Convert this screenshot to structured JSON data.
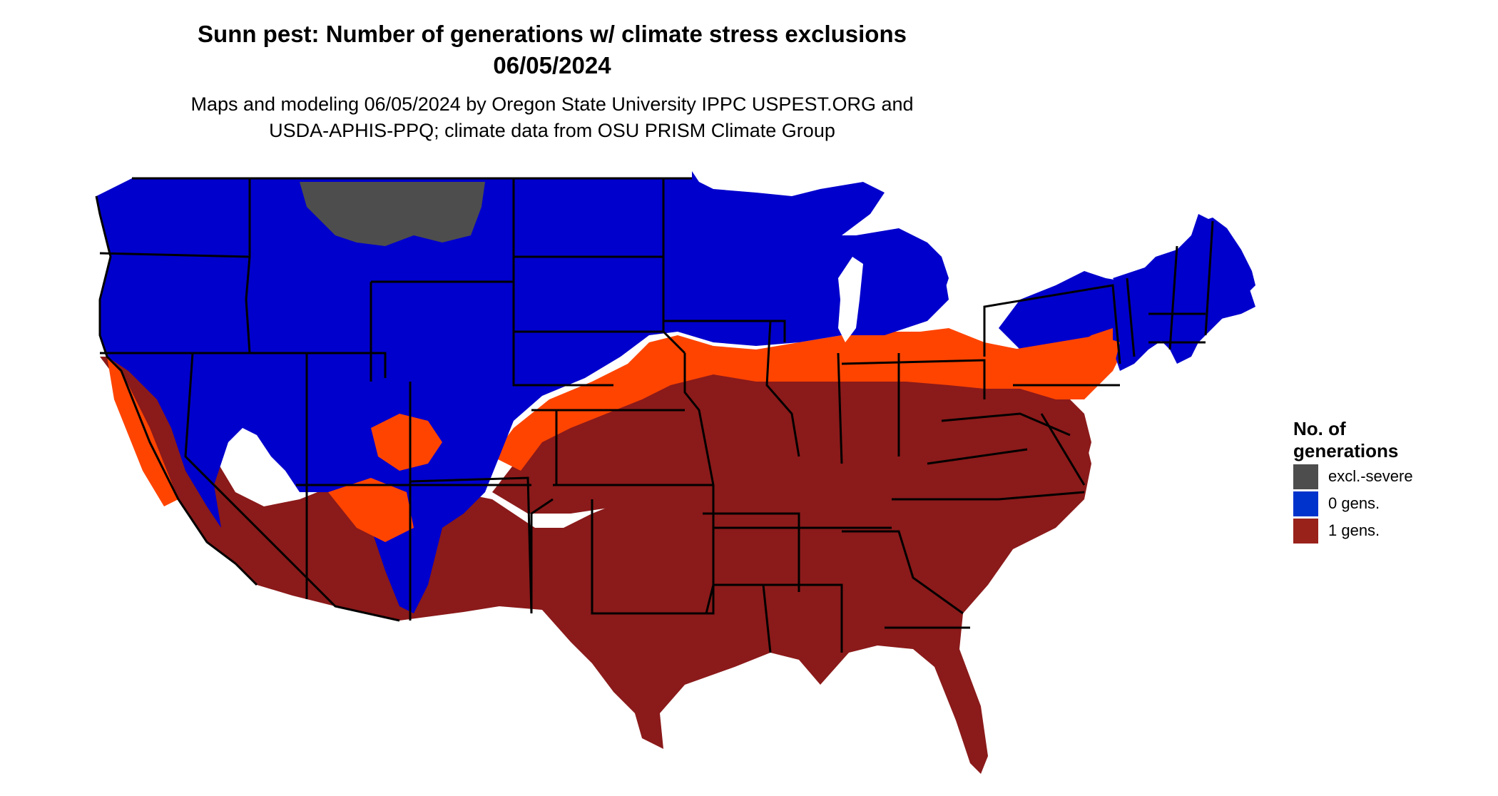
{
  "title_line1": "Sunn pest: Number of generations w/ climate stress exclusions",
  "title_line2": "06/05/2024",
  "subtitle_line1": "Maps and modeling 06/05/2024 by Oregon State University IPPC USPEST.ORG and",
  "subtitle_line2": "USDA-APHIS-PPQ; climate data from OSU PRISM Climate Group",
  "legend": {
    "title_line1": "No. of",
    "title_line2": "generations",
    "items": [
      {
        "label": "excl.-severe",
        "color": "#4d4d4d"
      },
      {
        "label": "0 gens.",
        "color": "#0033cc"
      },
      {
        "label": "1 gens.",
        "color": "#99221b"
      }
    ]
  },
  "colors": {
    "zero_gen_map": "#0000cc",
    "one_gen_map": "#8b1a1a",
    "transition": "#ff4400",
    "excluded": "#4d4d4d",
    "state_border": "#000000"
  }
}
